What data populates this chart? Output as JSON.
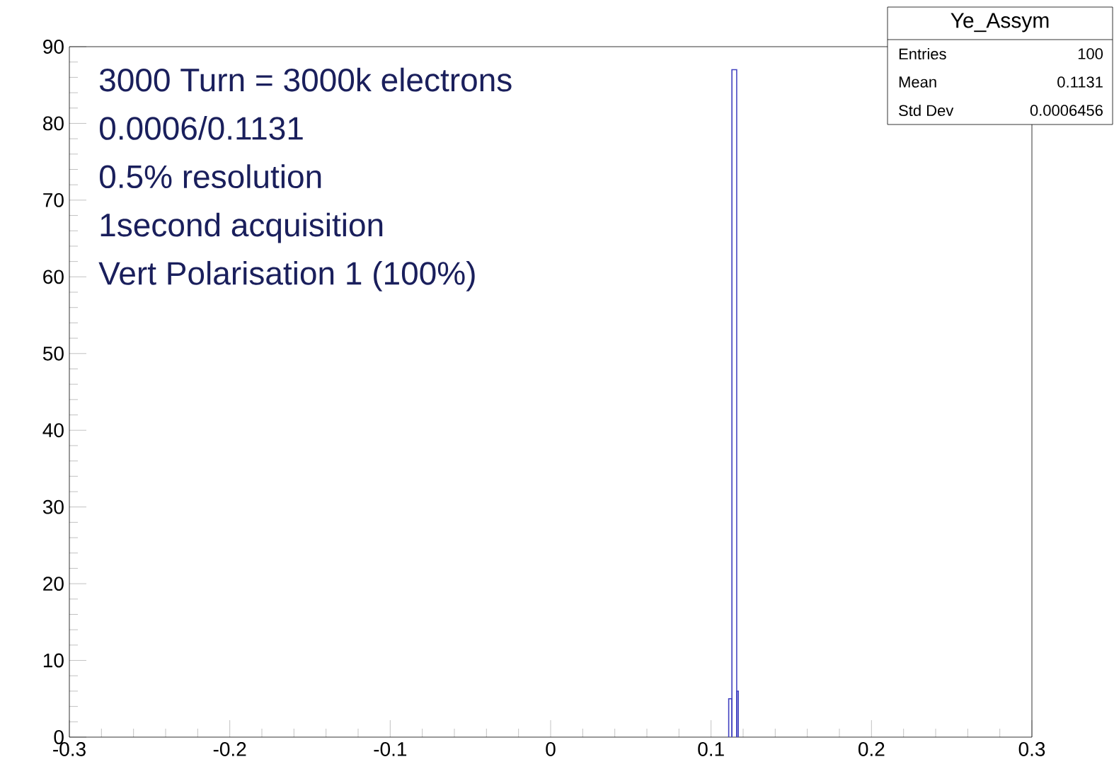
{
  "chart_data": {
    "type": "histogram",
    "bins": [
      0.111,
      0.113,
      0.116,
      0.117
    ],
    "values": [
      5,
      87,
      6
    ],
    "color": "#4040c0",
    "xlim": [
      -0.3,
      0.3
    ],
    "xticks": [
      -0.3,
      -0.2,
      -0.1,
      0,
      0.1,
      0.2,
      0.3
    ],
    "ylim": [
      0,
      90
    ],
    "yticks": [
      0,
      10,
      20,
      30,
      40,
      50,
      60,
      70,
      80,
      90
    ],
    "grid": false,
    "annotations": [
      "3000 Turn = 3000k electrons",
      "0.0006/0.1131",
      "0.5% resolution",
      "1second acquisition",
      "Vert Polarisation 1 (100%)",
      "Ye_Assym",
      "Entries",
      "100",
      "Mean",
      "0.1131",
      "Std Dev",
      "0.0006456"
    ]
  }
}
